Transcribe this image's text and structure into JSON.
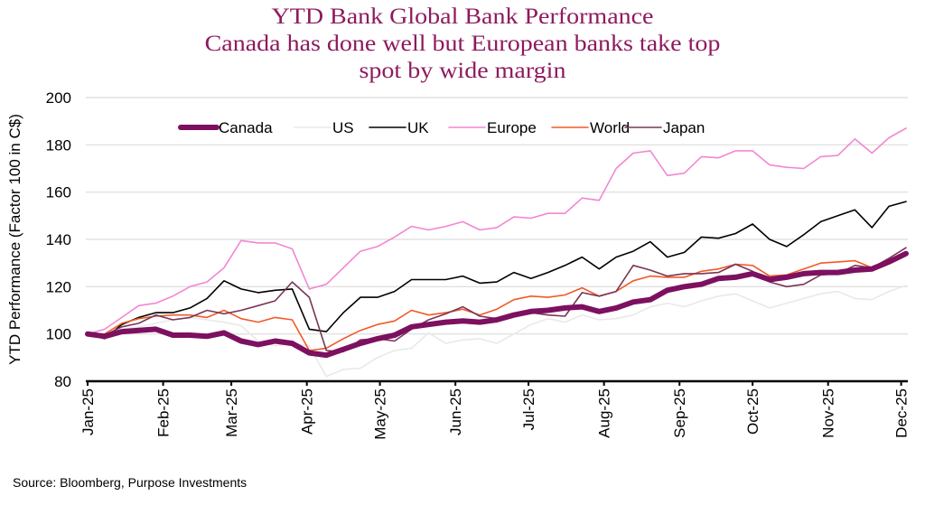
{
  "chart_data": {
    "type": "line",
    "title": [
      "YTD Bank Global Bank Performance",
      "Canada has done well but European banks take top",
      "spot by wide margin"
    ],
    "ylabel": "YTD Performance (Factor 100 in C$)",
    "xlabel": "",
    "ylim": [
      80,
      200
    ],
    "yticks": [
      80,
      100,
      120,
      140,
      160,
      180,
      200
    ],
    "xlim": [
      "2025-01-01",
      "2025-12-03"
    ],
    "xticks": [
      {
        "date": "2025-01-01",
        "label": "Jan-25"
      },
      {
        "date": "2025-02-01",
        "label": "Feb-25"
      },
      {
        "date": "2025-03-01",
        "label": "Mar-25"
      },
      {
        "date": "2025-04-01",
        "label": "Apr-25"
      },
      {
        "date": "2025-05-01",
        "label": "May-25"
      },
      {
        "date": "2025-06-01",
        "label": "Jun-25"
      },
      {
        "date": "2025-07-01",
        "label": "Jul-25"
      },
      {
        "date": "2025-08-01",
        "label": "Aug-25"
      },
      {
        "date": "2025-09-01",
        "label": "Sep-25"
      },
      {
        "date": "2025-10-01",
        "label": "Oct-25"
      },
      {
        "date": "2025-11-01",
        "label": "Nov-25"
      },
      {
        "date": "2025-12-01",
        "label": "Dec-25"
      }
    ],
    "grid": "horizontal",
    "legend_position": "top",
    "x_start": "2025-01-01",
    "x_step_days": 7,
    "series": [
      {
        "name": "Canada",
        "color": "#7d1060",
        "width": 6,
        "values": [
          100,
          99,
          101,
          101.5,
          102,
          99.5,
          99.5,
          99,
          100.5,
          97,
          95.5,
          97,
          96,
          92,
          91,
          93.5,
          96,
          98,
          99.5,
          103,
          104,
          105,
          105.5,
          105,
          106,
          108,
          109.5,
          110,
          111,
          111.5,
          109.5,
          111,
          113.5,
          114.5,
          118.5,
          120,
          121,
          123.5,
          124,
          125.5,
          123,
          124,
          125.5,
          126,
          126,
          127,
          127.5,
          130.5,
          134
        ]
      },
      {
        "name": "US",
        "color": "#e9e9e9",
        "width": 1.6,
        "values": [
          100,
          99,
          102,
          103,
          104.5,
          106,
          107,
          106,
          105,
          103.5,
          97,
          95,
          96,
          95,
          82,
          85,
          85.5,
          90,
          93,
          94,
          100.5,
          96,
          97.5,
          98,
          96,
          100,
          104,
          106.5,
          105,
          108,
          106,
          106.5,
          108,
          111.5,
          113,
          111.5,
          114,
          116,
          117,
          114,
          111,
          113,
          115,
          117,
          118,
          115,
          114.5,
          118,
          120.5
        ]
      },
      {
        "name": "UK",
        "color": "#000000",
        "width": 1.6,
        "values": [
          100,
          98,
          104,
          107,
          109,
          109,
          111,
          115,
          122.5,
          119,
          117.5,
          118.5,
          119,
          102,
          101,
          109,
          115.5,
          115.5,
          118,
          123,
          123,
          123,
          124.5,
          121.5,
          122,
          126,
          123.5,
          126,
          129,
          132.5,
          127.5,
          132.5,
          135,
          139,
          132.5,
          134.5,
          141,
          140.5,
          142.5,
          146.5,
          140,
          137,
          142,
          147.5,
          150,
          152.5,
          145,
          154,
          156
        ]
      },
      {
        "name": "Europe",
        "color": "#f287d2",
        "width": 1.6,
        "values": [
          100,
          102,
          107,
          112,
          113,
          116,
          120,
          122,
          128,
          139.5,
          138.5,
          138.5,
          136,
          119,
          121,
          128,
          135,
          137,
          141,
          145.5,
          144,
          145.5,
          147.5,
          144,
          145,
          149.5,
          149,
          151,
          151,
          157.5,
          156.5,
          170,
          176.5,
          177.5,
          167,
          168,
          175,
          174.5,
          177.5,
          177.5,
          171.5,
          170.5,
          170,
          175,
          175.5,
          182.5,
          176.5,
          183,
          187
        ]
      },
      {
        "name": "World",
        "color": "#f05a28",
        "width": 1.6,
        "values": [
          100,
          100,
          104.5,
          106.5,
          107.5,
          108,
          108,
          107,
          110,
          106.5,
          105,
          107,
          106,
          93,
          94,
          98,
          101.5,
          104,
          105.5,
          110,
          108,
          109,
          110.5,
          108,
          110.5,
          114.5,
          116,
          115.5,
          116.5,
          119.5,
          116,
          118,
          122.5,
          124.5,
          124,
          124,
          126.5,
          127.5,
          129.5,
          129,
          124.5,
          125,
          127.5,
          130,
          130.5,
          131,
          128,
          131.5,
          134
        ]
      },
      {
        "name": "Japan",
        "color": "#7a3556",
        "width": 1.6,
        "values": [
          100.5,
          99.5,
          103,
          104.5,
          108,
          106,
          107,
          110,
          108.5,
          110,
          112,
          114,
          122,
          115.5,
          93,
          92.5,
          97.5,
          98,
          97,
          102,
          106,
          108.5,
          111.5,
          107.5,
          106.5,
          107.5,
          109,
          108,
          107.5,
          117.5,
          116,
          118,
          129,
          127,
          124.5,
          125.5,
          125.5,
          126,
          129.5,
          126.5,
          122,
          120,
          121,
          125,
          125.5,
          129,
          128,
          132,
          136.5
        ]
      }
    ]
  },
  "source": "Source: Bloomberg, Purpose Investments"
}
